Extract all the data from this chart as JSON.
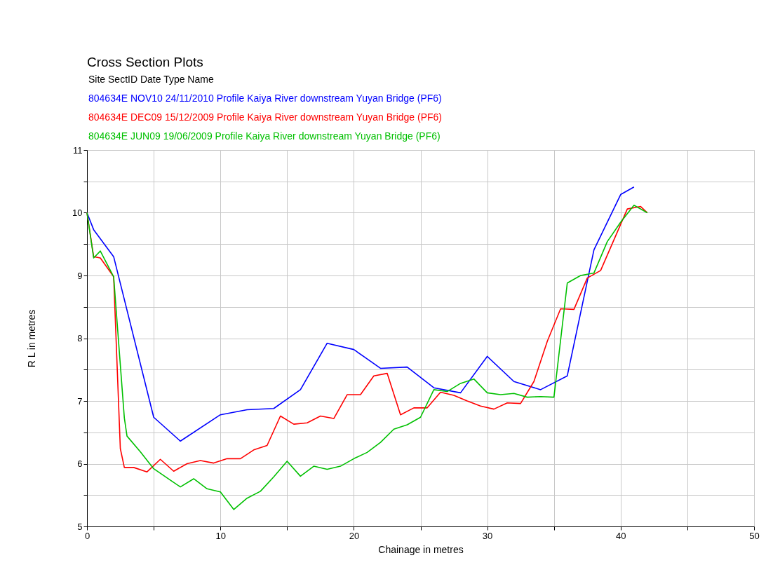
{
  "chart_data": {
    "type": "line",
    "title": "Cross Section Plots",
    "legend_title": "Site                        SectID  Date          Type                                   Name",
    "xlabel": "Chainage in metres",
    "ylabel": "R L  in metres",
    "xlim": [
      0,
      50
    ],
    "ylim": [
      5,
      11
    ],
    "xticks": [
      0,
      {
        "value": 5,
        "label": null
      },
      10,
      {
        "value": 15,
        "label": null
      },
      20,
      {
        "value": 25,
        "label": null
      },
      30,
      {
        "value": 35,
        "label": null
      },
      40,
      {
        "value": 45,
        "label": null
      },
      50
    ],
    "yticks": [
      5,
      {
        "value": 5.5,
        "label": null
      },
      6,
      {
        "value": 6.5,
        "label": null
      },
      7,
      {
        "value": 7.5,
        "label": null
      },
      8,
      {
        "value": 8.5,
        "label": null
      },
      9,
      {
        "value": 9.5,
        "label": null
      },
      10,
      {
        "value": 10.5,
        "label": null
      },
      11
    ],
    "grid": true,
    "legend": "top",
    "marker": "none",
    "line_style": "solid",
    "series": [
      {
        "name": "804634E                   NOV10  24/11/2010 Profile                              Kaiya River downstream Yuyan Bridge (PF6)",
        "color": "#0000ff",
        "x": [
          0,
          0.5,
          2,
          5,
          7,
          10,
          12,
          14,
          16,
          18,
          20,
          22,
          24,
          26,
          28,
          30,
          32,
          34,
          36,
          38,
          40,
          41
        ],
        "values": [
          10,
          9.73,
          9.3,
          6.74,
          6.36,
          6.78,
          6.86,
          6.88,
          7.18,
          7.92,
          7.82,
          7.52,
          7.54,
          7.21,
          7.13,
          7.71,
          7.31,
          7.18,
          7.4,
          9.41,
          10.29,
          10.41
        ]
      },
      {
        "name": "804634E                   DEC09  15/12/2009 Profile                              Kaiya River downstream Yuyan Bridge (PF6)",
        "color": "#ff0000",
        "x": [
          0,
          0.5,
          1,
          2,
          2.5,
          2.8,
          3.5,
          4.5,
          5.5,
          6.5,
          7.5,
          8.5,
          9.5,
          10.5,
          11.5,
          12.5,
          13.5,
          14.5,
          15.5,
          16.5,
          17.5,
          18.5,
          19.5,
          20.5,
          21.5,
          22.5,
          23.5,
          24.5,
          25.5,
          26.5,
          27.5,
          28.5,
          29.5,
          30.5,
          31.5,
          32.5,
          33.5,
          34.5,
          35.5,
          36.5,
          37.5,
          38.5,
          40.5,
          41.5,
          42
        ],
        "values": [
          10,
          9.3,
          9.28,
          8.98,
          6.24,
          5.94,
          5.94,
          5.87,
          6.07,
          5.88,
          6.0,
          6.05,
          6.01,
          6.08,
          6.08,
          6.22,
          6.29,
          6.76,
          6.63,
          6.65,
          6.76,
          6.72,
          7.1,
          7.1,
          7.4,
          7.44,
          6.78,
          6.89,
          6.89,
          7.14,
          7.09,
          7.0,
          6.92,
          6.87,
          6.97,
          6.96,
          7.31,
          7.95,
          8.47,
          8.46,
          8.96,
          9.08,
          10.06,
          10.1,
          10.0
        ]
      },
      {
        "name": "804634E                   JUN09   19/06/2009 Profile                              Kaiya River downstream Yuyan Bridge (PF6)",
        "color": "#00c000",
        "x": [
          0,
          0.5,
          1,
          2,
          2.8,
          3,
          4,
          5,
          6.3,
          7,
          8,
          9,
          10,
          11,
          12,
          13,
          14,
          15,
          16,
          17,
          18,
          19,
          20,
          21,
          22,
          23,
          24,
          25,
          26,
          27,
          28,
          29,
          30,
          31,
          32,
          33,
          34,
          35,
          36,
          37,
          38,
          39,
          40,
          41,
          42
        ],
        "values": [
          10,
          9.28,
          9.39,
          8.98,
          6.73,
          6.44,
          6.19,
          5.92,
          5.73,
          5.63,
          5.76,
          5.6,
          5.55,
          5.27,
          5.45,
          5.56,
          5.79,
          6.04,
          5.8,
          5.96,
          5.91,
          5.96,
          6.08,
          6.18,
          6.34,
          6.55,
          6.62,
          6.74,
          7.18,
          7.15,
          7.28,
          7.35,
          7.13,
          7.1,
          7.12,
          7.06,
          7.07,
          7.06,
          8.88,
          9.0,
          9.04,
          9.54,
          9.85,
          10.12,
          10.0
        ]
      }
    ]
  }
}
